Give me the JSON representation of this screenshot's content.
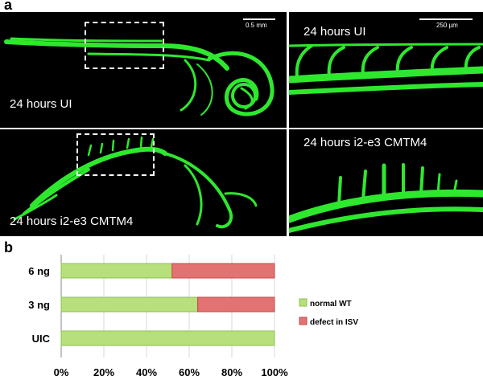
{
  "panel_a": {
    "letter": "a",
    "images": [
      {
        "label": "24 hours UI",
        "scale": "0.5 mm"
      },
      {
        "label": "24 hours UI",
        "scale": "250 µm"
      },
      {
        "label": "24 hours i2-e3  CMTM4",
        "scale": ""
      },
      {
        "label": "24 hours i2-e3  CMTM4",
        "scale": ""
      }
    ]
  },
  "panel_b": {
    "letter": "b"
  },
  "colors": {
    "normal": "#b7e07c",
    "defect": "#e37373",
    "vessel": "#2ee82e"
  },
  "chart_data": {
    "type": "bar",
    "orientation": "horizontal",
    "stacked": true,
    "normalized": true,
    "categories": [
      "6 ng",
      "3 ng",
      "UIC"
    ],
    "series": [
      {
        "name": "normal WT",
        "values": [
          52,
          64,
          100
        ]
      },
      {
        "name": "defect in ISV",
        "values": [
          48,
          36,
          0
        ]
      }
    ],
    "xlim": [
      0,
      100
    ],
    "ticks": [
      "0%",
      "20%",
      "40%",
      "60%",
      "80%",
      "100%"
    ],
    "grid": true,
    "legend": "right"
  }
}
